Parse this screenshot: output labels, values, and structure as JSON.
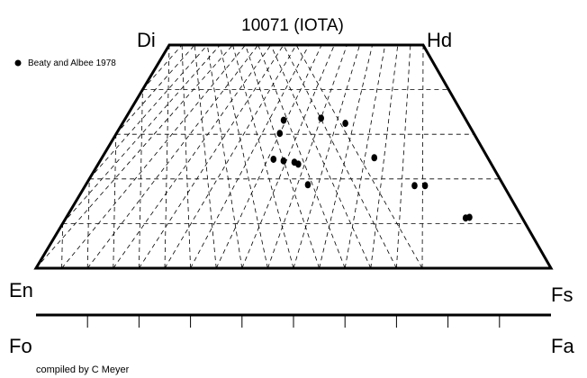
{
  "title": "10071 (IOTA)",
  "corners": {
    "di": "Di",
    "hd": "Hd",
    "en": "En",
    "fs": "Fs",
    "fo": "Fo",
    "fa": "Fa"
  },
  "legend": {
    "label": "Beaty and Albee 1978"
  },
  "credit": "compiled by C Meyer",
  "colors": {
    "ink": "#000000",
    "background": "#ffffff"
  },
  "chart_data": {
    "type": "scatter",
    "diagram": "pyroxene quadrilateral (En-Di-Hd-Fs) with olivine bar (Fo-Fa)",
    "series": [
      {
        "name": "Beaty and Albee 1978",
        "points_note": "positions read in fractional quadrilateral coordinates: u = Fs direction (0 at En/Di side, 1 at Fs/Hd side), v = Ca content (0 at base, 1 at top edge)",
        "points": [
          {
            "u": 0.457,
            "v": 0.604
          },
          {
            "u": 0.466,
            "v": 0.663
          },
          {
            "u": 0.576,
            "v": 0.672
          },
          {
            "u": 0.645,
            "v": 0.649
          },
          {
            "u": 0.445,
            "v": 0.488
          },
          {
            "u": 0.471,
            "v": 0.481
          },
          {
            "u": 0.499,
            "v": 0.475
          },
          {
            "u": 0.509,
            "v": 0.466
          },
          {
            "u": 0.706,
            "v": 0.495
          },
          {
            "u": 0.532,
            "v": 0.374
          },
          {
            "u": 0.787,
            "v": 0.37
          },
          {
            "u": 0.812,
            "v": 0.37
          },
          {
            "u": 0.876,
            "v": 0.225
          },
          {
            "u": 0.885,
            "v": 0.228
          }
        ]
      }
    ],
    "olivine_ticks": 10
  }
}
